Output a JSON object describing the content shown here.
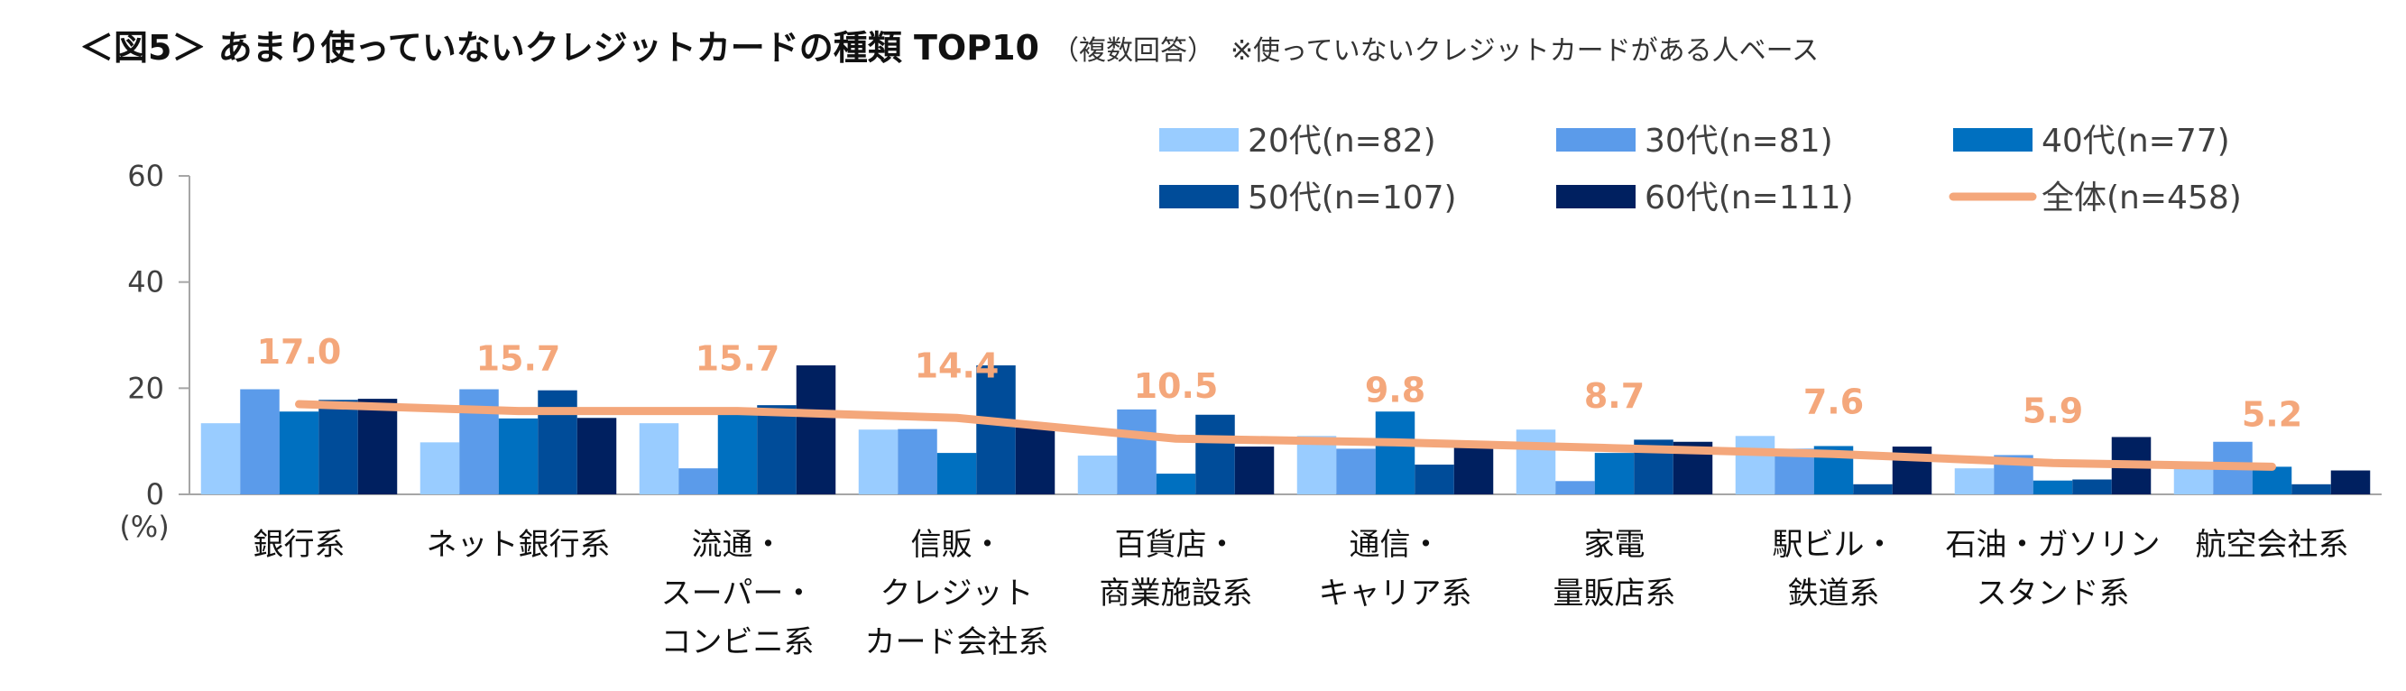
{
  "title": "＜図5＞ あまり使っていないクレジットカードの種類 TOP10",
  "subtitle": "（複数回答）",
  "note": "※使っていないクレジットカードがある人ベース",
  "chart_data": {
    "type": "bar",
    "ylim": [
      0,
      60
    ],
    "yticks": [
      "60",
      "40",
      "20",
      "0"
    ],
    "ylabel": "(%)",
    "grid": false,
    "legend_position": "top-right",
    "categories": [
      [
        "銀行系"
      ],
      [
        "ネット銀行系"
      ],
      [
        "流通・",
        "スーパー・",
        "コンビニ系"
      ],
      [
        "信販・",
        "クレジット",
        "カード会社系"
      ],
      [
        "百貨店・",
        "商業施設系"
      ],
      [
        "通信・",
        "キャリア系"
      ],
      [
        "家電",
        "量販店系"
      ],
      [
        "駅ビル・",
        "鉄道系"
      ],
      [
        "石油・ガソリン",
        "スタンド系"
      ],
      [
        "航空会社系"
      ]
    ],
    "series": [
      {
        "name": "20代(n=82)",
        "color": "#99CCFF",
        "values": [
          13.4,
          9.8,
          13.4,
          12.2,
          7.3,
          11.0,
          12.2,
          11.0,
          4.9,
          4.9
        ]
      },
      {
        "name": "30代(n=81)",
        "color": "#5B9BEA",
        "values": [
          19.8,
          19.8,
          4.9,
          12.3,
          16.0,
          8.6,
          2.5,
          8.6,
          7.4,
          9.9
        ]
      },
      {
        "name": "40代(n=77)",
        "color": "#0070C0",
        "values": [
          15.6,
          14.3,
          15.6,
          7.8,
          3.9,
          15.6,
          7.8,
          9.1,
          2.6,
          5.2
        ]
      },
      {
        "name": "50代(n=107)",
        "color": "#004C99",
        "values": [
          17.8,
          19.6,
          16.8,
          24.3,
          15.0,
          5.6,
          10.3,
          1.9,
          2.8,
          1.9
        ]
      },
      {
        "name": "60代(n=111)",
        "color": "#002060",
        "values": [
          18.0,
          14.4,
          24.3,
          12.6,
          9.0,
          9.0,
          9.9,
          9.0,
          10.8,
          4.5
        ]
      }
    ],
    "total_line": {
      "name": "全体(n=458)",
      "color": "#F4A77B",
      "values": [
        17.0,
        15.7,
        15.7,
        14.4,
        10.5,
        9.8,
        8.7,
        7.6,
        5.9,
        5.2
      ],
      "labels": [
        "17.0",
        "15.7",
        "15.7",
        "14.4",
        "10.5",
        "9.8",
        "8.7",
        "7.6",
        "5.9",
        "5.2"
      ]
    }
  }
}
